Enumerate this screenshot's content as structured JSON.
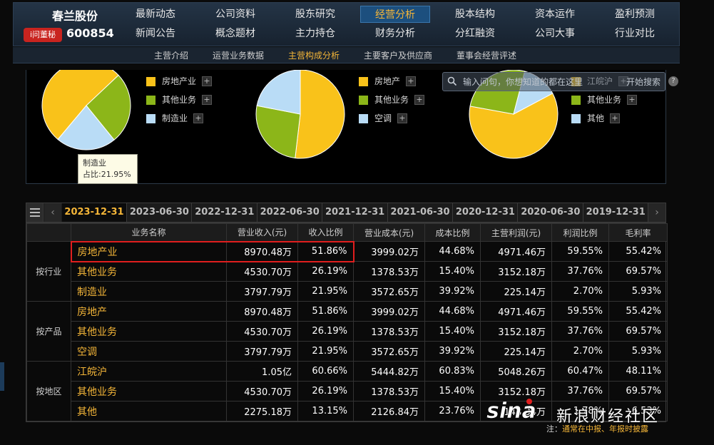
{
  "company": {
    "name": "春兰股份",
    "badge": "i问董秘",
    "code": "600854"
  },
  "nav": {
    "row1": [
      "最新动态",
      "公司资料",
      "股东研究",
      "经营分析",
      "股本结构",
      "资本运作",
      "盈利预测"
    ],
    "row2": [
      "新闻公告",
      "概念题材",
      "主力持仓",
      "财务分析",
      "分红融资",
      "公司大事",
      "行业对比"
    ],
    "active": "经营分析"
  },
  "subnav": {
    "items": [
      "主营介绍",
      "运营业务数据",
      "主营构成分析",
      "主要客户及供应商",
      "董事会经营评述"
    ],
    "active": "主营构成分析"
  },
  "colors": {
    "gold": "#f5b638",
    "slice_orange": "#f9c21a",
    "slice_green": "#8cb619",
    "slice_blue": "#b9dcf6",
    "highlight_red": "#e01e1e"
  },
  "pies": [
    {
      "legend": [
        "房地产业",
        "其他业务",
        "制造业"
      ],
      "values": [
        51.86,
        26.19,
        21.95
      ]
    },
    {
      "legend": [
        "房地产",
        "其他业务",
        "空调"
      ],
      "values": [
        51.86,
        26.19,
        21.95
      ]
    },
    {
      "legend": [
        "江皖沪",
        "其他业务",
        "其他"
      ],
      "values": [
        60.66,
        26.19,
        13.15
      ]
    }
  ],
  "tooltip": {
    "title": "制造业",
    "label": "占比:21.95%"
  },
  "search": {
    "placeholder": "输入问句，你想知道的都在这里",
    "button": "开始搜索"
  },
  "periods": [
    "2023-12-31",
    "2023-06-30",
    "2022-12-31",
    "2022-06-30",
    "2021-12-31",
    "2021-06-30",
    "2020-12-31",
    "2020-06-30",
    "2019-12-31"
  ],
  "active_period": "2023-12-31",
  "table": {
    "headers": [
      "业务名称",
      "营业收入(元)",
      "收入比例",
      "营业成本(元)",
      "成本比例",
      "主营利润(元)",
      "利润比例",
      "毛利率"
    ],
    "groups": [
      {
        "label": "按行业",
        "rows": [
          [
            "房地产业",
            "8970.48万",
            "51.86%",
            "3999.02万",
            "44.68%",
            "4971.46万",
            "59.55%",
            "55.42%"
          ],
          [
            "其他业务",
            "4530.70万",
            "26.19%",
            "1378.53万",
            "15.40%",
            "3152.18万",
            "37.76%",
            "69.57%"
          ],
          [
            "制造业",
            "3797.79万",
            "21.95%",
            "3572.65万",
            "39.92%",
            "225.14万",
            "2.70%",
            "5.93%"
          ]
        ]
      },
      {
        "label": "按产品",
        "rows": [
          [
            "房地产",
            "8970.48万",
            "51.86%",
            "3999.02万",
            "44.68%",
            "4971.46万",
            "59.55%",
            "55.42%"
          ],
          [
            "其他业务",
            "4530.70万",
            "26.19%",
            "1378.53万",
            "15.40%",
            "3152.18万",
            "37.76%",
            "69.57%"
          ],
          [
            "空调",
            "3797.79万",
            "21.95%",
            "3572.65万",
            "39.92%",
            "225.14万",
            "2.70%",
            "5.93%"
          ]
        ]
      },
      {
        "label": "按地区",
        "rows": [
          [
            "江皖沪",
            "1.05亿",
            "60.66%",
            "5444.82万",
            "60.83%",
            "5048.26万",
            "60.47%",
            "48.11%"
          ],
          [
            "其他业务",
            "4530.70万",
            "26.19%",
            "1378.53万",
            "15.40%",
            "3152.18万",
            "37.76%",
            "69.57%"
          ],
          [
            "其他",
            "2275.18万",
            "13.15%",
            "2126.84万",
            "23.76%",
            "148.34万",
            "1.78%",
            "6.53%"
          ]
        ]
      }
    ]
  },
  "watermark": {
    "logo": "sina",
    "text": "新浪财经社区"
  },
  "note": {
    "prefix": "注：",
    "text": "通常在中报、年报时披露"
  }
}
